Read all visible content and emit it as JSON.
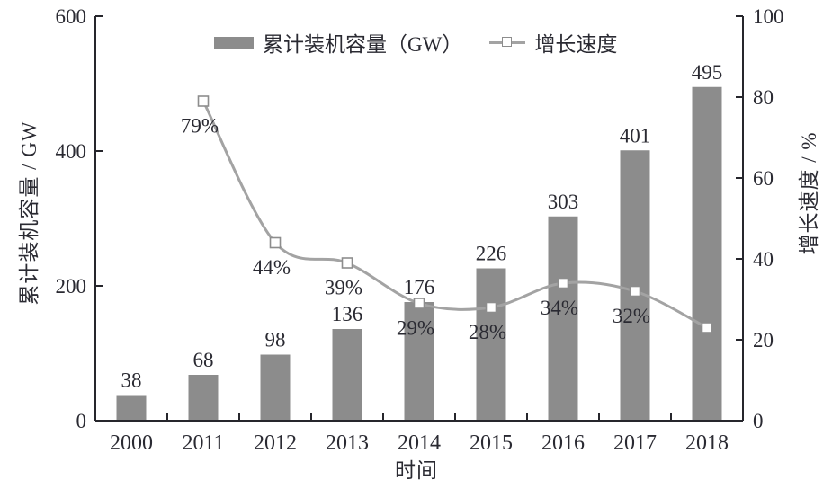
{
  "chart_data": {
    "type": "bar+line",
    "title": "",
    "categories": [
      "2000",
      "2011",
      "2012",
      "2013",
      "2014",
      "2015",
      "2016",
      "2017",
      "2018"
    ],
    "series": [
      {
        "name": "累计装机容量（GW）",
        "type": "bar",
        "axis": "left",
        "values": [
          38,
          68,
          98,
          136,
          176,
          226,
          303,
          401,
          495
        ],
        "labels": [
          "38",
          "68",
          "98",
          "136",
          "176",
          "226",
          "303",
          "401",
          "495"
        ],
        "color": "#8c8c8c"
      },
      {
        "name": "增长速度",
        "type": "line",
        "axis": "right",
        "values": [
          null,
          79,
          44,
          39,
          29,
          28,
          34,
          32,
          23
        ],
        "labels": [
          null,
          "79%",
          "44%",
          "39%",
          "29%",
          "28%",
          "34%",
          "32%",
          null
        ],
        "color": "#a3a3a3",
        "marker": "open-square",
        "marker_fill": "#ffffff",
        "marker_stroke": "#8d8d8d"
      }
    ],
    "x_axis": {
      "title": "时间"
    },
    "left_axis": {
      "title": "累计装机容量 / GW",
      "min": 0,
      "max": 600,
      "ticks": [
        0,
        200,
        400,
        600
      ]
    },
    "right_axis": {
      "title": "增长速度 / %",
      "min": 0,
      "max": 100,
      "ticks": [
        0,
        20,
        40,
        60,
        80,
        100
      ]
    },
    "legend": {
      "position": "top-center",
      "items": [
        {
          "label": "累计装机容量（GW）",
          "swatch": "bar"
        },
        {
          "label": "增长速度",
          "swatch": "line"
        }
      ]
    },
    "grid": false,
    "colors": {
      "bar": "#8c8c8c",
      "line": "#a3a3a3",
      "axis": "#26262c",
      "text": "#2a2a32",
      "marker_fill": "#ffffff",
      "marker_stroke": "#8d8d8d"
    }
  }
}
